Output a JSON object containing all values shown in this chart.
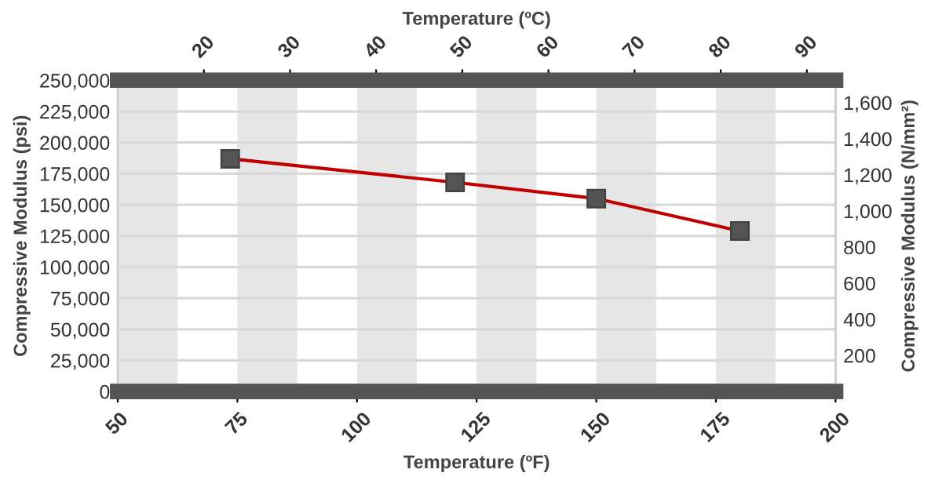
{
  "chart_data": {
    "type": "line",
    "xlabel": "Temperature (ºF)",
    "ylabel": "Compressive Modulus (psi)",
    "x2label": "Temperature (ºC)",
    "y2label": "Compressive Modulus (N/mm²)",
    "x": [
      73.5,
      120.5,
      150,
      180
    ],
    "series": [
      {
        "color": "#c00000",
        "values": [
          187000,
          168000,
          155000,
          129000
        ]
      }
    ],
    "xlim": [
      50,
      200
    ],
    "xticks": [
      50,
      75,
      100,
      125,
      150,
      175,
      200
    ],
    "ylim": [
      0,
      250000
    ],
    "yticks": [
      0,
      {
        "value": 25000,
        "label": "25,000"
      },
      {
        "value": 50000,
        "label": "50,000"
      },
      {
        "value": 75000,
        "label": "75,000"
      },
      {
        "value": 100000,
        "label": "100,000"
      },
      {
        "value": 125000,
        "label": "125,000"
      },
      {
        "value": 150000,
        "label": "150,000"
      },
      {
        "value": 175000,
        "label": "175,000"
      },
      {
        "value": 200000,
        "label": "200,000"
      },
      {
        "value": 225000,
        "label": "225,000"
      },
      {
        "value": 250000,
        "label": "250,000"
      }
    ],
    "x2lim": [
      10,
      93.333
    ],
    "x2ticks": [
      20,
      30,
      40,
      50,
      60,
      70,
      80,
      90
    ],
    "y2lim": [
      0,
      1723.7
    ],
    "y2ticks": [
      200,
      400,
      600,
      800,
      {
        "value": 1000,
        "label": "1,000"
      },
      {
        "value": 1200,
        "label": "1,200"
      },
      {
        "value": 1400,
        "label": "1,400"
      },
      {
        "value": 1600,
        "label": "1,600"
      }
    ],
    "bands": [
      {
        "axis": "x",
        "from": 50,
        "to": 62.5,
        "color": "#e6e6e6"
      },
      {
        "axis": "x",
        "from": 75,
        "to": 87.5,
        "color": "#e6e6e6"
      },
      {
        "axis": "x",
        "from": 100,
        "to": 112.5,
        "color": "#e6e6e6"
      },
      {
        "axis": "x",
        "from": 125,
        "to": 137.5,
        "color": "#e6e6e6"
      },
      {
        "axis": "x",
        "from": 150,
        "to": 162.5,
        "color": "#e6e6e6"
      },
      {
        "axis": "x",
        "from": 175,
        "to": 187.5,
        "color": "#e6e6e6"
      }
    ],
    "grid": "y",
    "marker": "square",
    "line_style": "solid"
  }
}
